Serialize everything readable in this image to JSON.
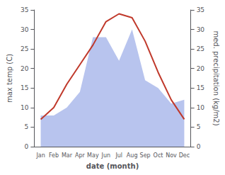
{
  "chart_data": {
    "type": "line",
    "categories": [
      "Jan",
      "Feb",
      "Mar",
      "Apr",
      "May",
      "Jun",
      "Jul",
      "Aug",
      "Sep",
      "Oct",
      "Nov",
      "Dec"
    ],
    "series": [
      {
        "type": "area",
        "color": "#b8c4ee",
        "axis": "y2",
        "values": [
          8,
          8,
          10,
          14,
          28,
          28,
          22,
          30,
          17,
          15,
          11,
          12
        ]
      },
      {
        "type": "line",
        "color": "#c0392b",
        "values": [
          7,
          10,
          16,
          21,
          26,
          32,
          34,
          33,
          27,
          19,
          12,
          7
        ]
      }
    ],
    "xlabel": "date (month)",
    "ylabel": "max temp (C)",
    "y2label": "med. precipitation (kg/m2)",
    "ylim": [
      0,
      35
    ],
    "yticks": [
      0,
      5,
      10,
      15,
      20,
      25,
      30,
      35
    ],
    "y2lim": [
      0,
      35
    ],
    "y2ticks": [
      0,
      5,
      10,
      15,
      20,
      25,
      30,
      35
    ],
    "grid": false
  }
}
